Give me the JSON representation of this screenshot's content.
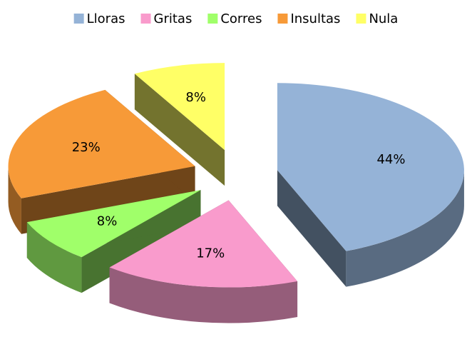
{
  "chart_data": {
    "type": "pie",
    "three_d": true,
    "exploded": true,
    "categories": [
      "Lloras",
      "Gritas",
      "Corres",
      "Insultas",
      "Nula"
    ],
    "values": [
      44,
      17,
      8,
      23,
      8
    ],
    "value_labels": [
      "44%",
      "17%",
      "8%",
      "23%",
      "8%"
    ],
    "colors": [
      "#95b3d7",
      "#f99bcc",
      "#a0ff6a",
      "#f79a38",
      "#ffff66"
    ],
    "legend": "top"
  }
}
